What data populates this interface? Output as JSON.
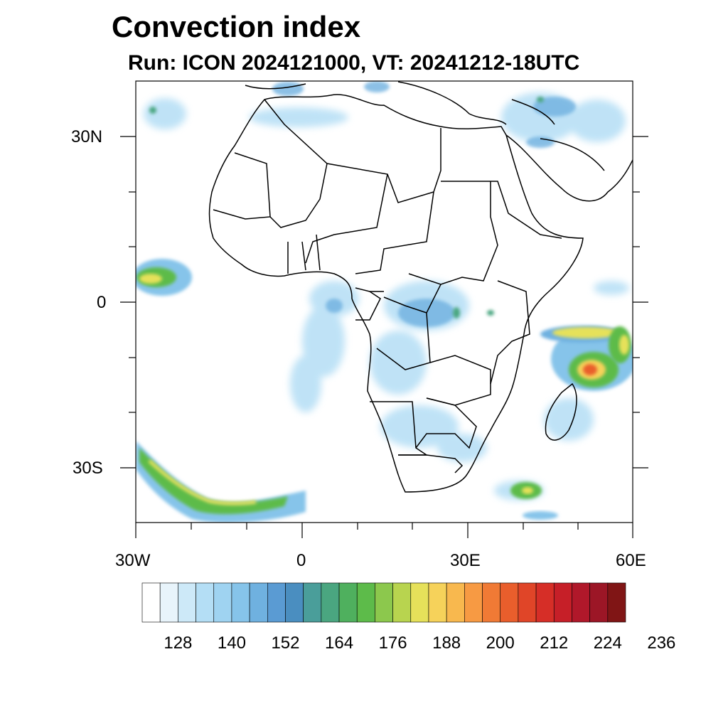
{
  "title": "Convection index",
  "subtitle": "Run: ICON 2024121000,  VT: 20241212-18UTC",
  "axes": {
    "lat_labels": [
      "30N",
      "0",
      "30S"
    ],
    "lon_labels": [
      "30W",
      "0",
      "30E",
      "60E"
    ]
  },
  "colorbar": {
    "tick_labels": [
      "128",
      "140",
      "152",
      "164",
      "176",
      "188",
      "200",
      "212",
      "224",
      "236"
    ],
    "colors": [
      "#ffffff",
      "#e8f4fb",
      "#cde9f8",
      "#b4def5",
      "#9fd3f1",
      "#86c4ea",
      "#6fb1e0",
      "#5a9bd3",
      "#4a8ec0",
      "#4a9e9a",
      "#4aa680",
      "#4fb05e",
      "#5dbb4a",
      "#8cc84d",
      "#b8d44f",
      "#e6e15a",
      "#f6d25a",
      "#f8b84e",
      "#f79a43",
      "#f07a35",
      "#e95e2c",
      "#e04528",
      "#d62e27",
      "#c61f28",
      "#b0182a",
      "#9c1626",
      "#801515"
    ]
  },
  "map_region": {
    "lon_range": [
      -30,
      60
    ],
    "lat_range": [
      -40,
      40
    ]
  }
}
